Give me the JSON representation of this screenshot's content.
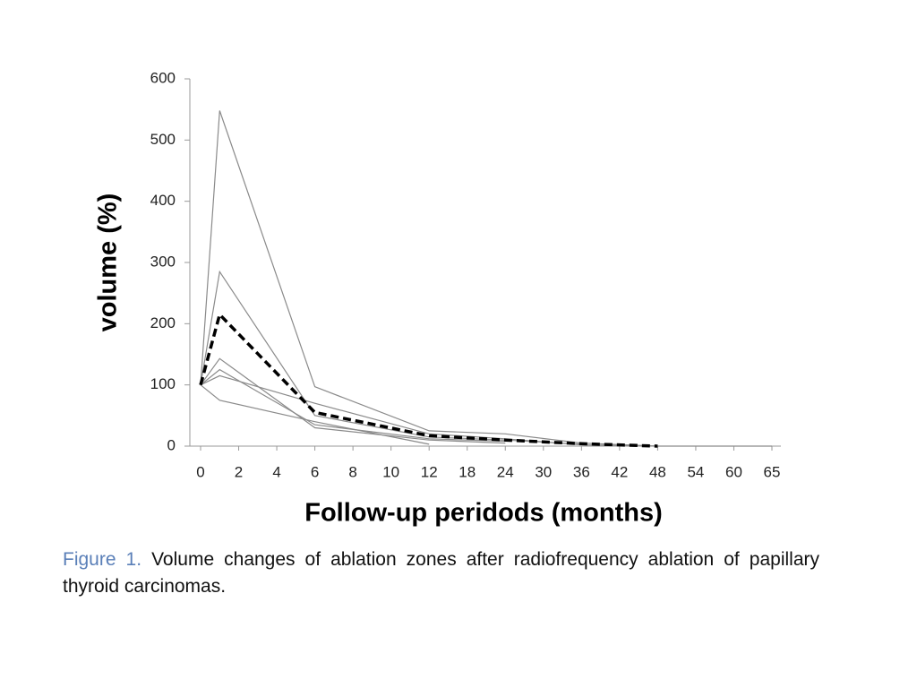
{
  "chart_data": {
    "type": "line",
    "x_label": "Follow-up peridods (months)",
    "y_label": "volume (%)",
    "x": [
      0,
      1,
      6,
      12,
      24,
      36,
      48,
      65
    ],
    "xticks": [
      0,
      2,
      4,
      6,
      8,
      10,
      12,
      18,
      24,
      30,
      36,
      42,
      48,
      54,
      60,
      65
    ],
    "ylim": [
      0,
      600
    ],
    "yticks": [
      0,
      100,
      200,
      300,
      400,
      500,
      600
    ],
    "series": [
      {
        "color": "#8a8a8a",
        "dashed": false,
        "values": [
          100,
          548,
          97,
          25,
          20,
          5,
          0,
          null
        ]
      },
      {
        "color": "#8a8a8a",
        "dashed": false,
        "values": [
          100,
          285,
          50,
          15,
          10,
          3,
          null,
          null
        ]
      },
      {
        "color": "#8a8a8a",
        "dashed": false,
        "values": [
          100,
          143,
          30,
          10,
          5,
          null,
          null,
          null
        ]
      },
      {
        "color": "#8a8a8a",
        "dashed": false,
        "values": [
          100,
          125,
          35,
          12,
          8,
          null,
          null,
          null
        ]
      },
      {
        "color": "#8a8a8a",
        "dashed": false,
        "values": [
          100,
          115,
          70,
          20,
          12,
          2,
          0,
          0
        ]
      },
      {
        "color": "#8a8a8a",
        "dashed": false,
        "values": [
          100,
          75,
          40,
          3,
          null,
          null,
          null,
          null
        ]
      },
      {
        "color": "#000000",
        "dashed": true,
        "values": [
          100,
          215,
          55,
          17,
          10,
          4,
          0,
          null
        ]
      }
    ]
  },
  "caption": {
    "label": "Figure 1.",
    "text": "Volume changes of ablation zones after radiofrequency ablation of papillary thyroid carcinomas."
  }
}
